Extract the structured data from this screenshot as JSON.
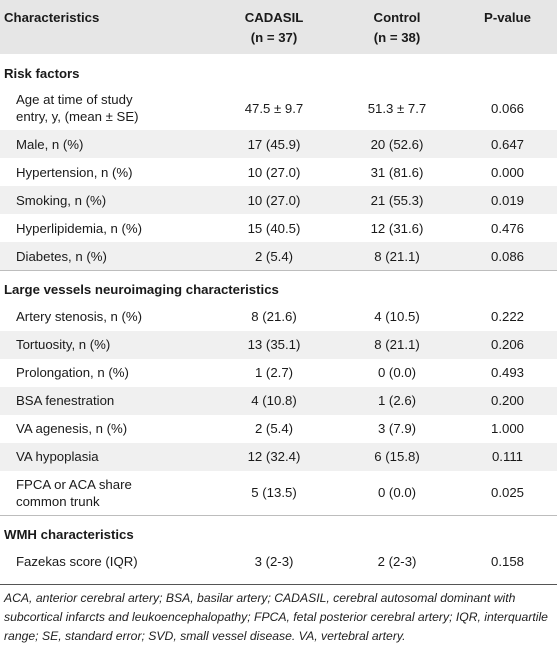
{
  "header": {
    "col1": "Characteristics",
    "col2_line1": "CADASIL",
    "col2_line2": "(n = 37)",
    "col3_line1": "Control",
    "col3_line2": "(n = 38)",
    "col4": "P-value"
  },
  "sections": [
    {
      "title": "Risk factors",
      "rows": [
        {
          "label": "Age at time of study",
          "label2": "entry, y, (mean ± SE)",
          "cadasil": "47.5 ± 9.7",
          "control": "51.3 ± 7.7",
          "p": "0.066"
        },
        {
          "label": "Male, n (%)",
          "cadasil": "17 (45.9)",
          "control": "20 (52.6)",
          "p": "0.647"
        },
        {
          "label": "Hypertension, n (%)",
          "cadasil": "10 (27.0)",
          "control": "31 (81.6)",
          "p": "0.000"
        },
        {
          "label": "Smoking, n (%)",
          "cadasil": "10 (27.0)",
          "control": "21 (55.3)",
          "p": "0.019"
        },
        {
          "label": "Hyperlipidemia, n (%)",
          "cadasil": "15 (40.5)",
          "control": "12 (31.6)",
          "p": "0.476"
        },
        {
          "label": "Diabetes, n (%)",
          "cadasil": "2 (5.4)",
          "control": "8 (21.1)",
          "p": "0.086"
        }
      ]
    },
    {
      "title": "Large vessels neuroimaging characteristics",
      "rows": [
        {
          "label": "Artery stenosis, n (%)",
          "cadasil": "8 (21.6)",
          "control": "4 (10.5)",
          "p": "0.222"
        },
        {
          "label": "Tortuosity, n (%)",
          "cadasil": "13 (35.1)",
          "control": "8 (21.1)",
          "p": "0.206"
        },
        {
          "label": "Prolongation, n (%)",
          "cadasil": "1 (2.7)",
          "control": "0 (0.0)",
          "p": "0.493"
        },
        {
          "label": "BSA fenestration",
          "cadasil": "4 (10.8)",
          "control": "1 (2.6)",
          "p": "0.200"
        },
        {
          "label": "VA agenesis, n (%)",
          "cadasil": "2 (5.4)",
          "control": "3 (7.9)",
          "p": "1.000"
        },
        {
          "label": "VA hypoplasia",
          "cadasil": "12 (32.4)",
          "control": "6 (15.8)",
          "p": "0.111"
        },
        {
          "label": "FPCA or ACA share",
          "label2": "common trunk",
          "cadasil": "5 (13.5)",
          "control": "0 (0.0)",
          "p": "0.025"
        }
      ]
    },
    {
      "title": "WMH characteristics",
      "rows": [
        {
          "label": "Fazekas score (IQR)",
          "cadasil": "3 (2-3)",
          "control": "2 (2-3)",
          "p": "0.158"
        }
      ]
    }
  ],
  "footnote": "ACA, anterior cerebral artery; BSA, basilar artery; CADASIL, cerebral autosomal dominant with subcortical infarcts and leukoencephalopathy; FPCA, fetal posterior cerebral artery; IQR, interquartile range; SE, standard error; SVD, small vessel disease. VA, vertebral artery."
}
